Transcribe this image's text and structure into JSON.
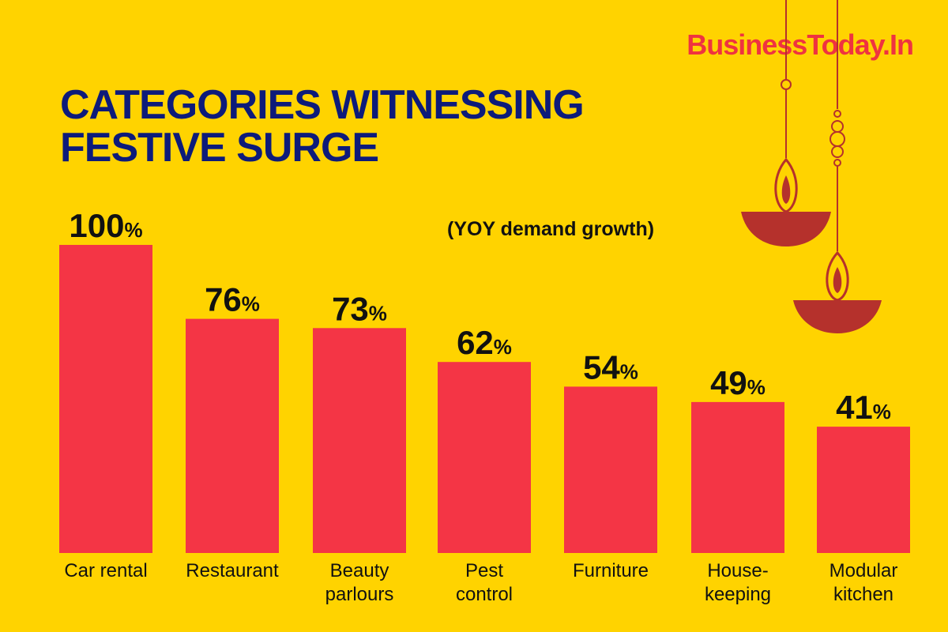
{
  "brand": {
    "logo_text": "BusinessToday.In"
  },
  "title_lines": [
    "CATEGORIES WITNESSING",
    "FESTIVE SURGE"
  ],
  "colors": {
    "background": "#FFD300",
    "bar": "#F43545",
    "title": "#0D1B7A",
    "logo": "#EF3340",
    "lamp": "#B5312C",
    "text": "#111111"
  },
  "decor": {
    "icons": [
      "diya-lamp-icon",
      "diya-lamp-icon"
    ]
  },
  "chart_data": {
    "type": "bar",
    "title": "CATEGORIES WITNESSING FESTIVE SURGE",
    "subtitle": "(YOY demand growth)",
    "categories": [
      [
        "Car rental"
      ],
      [
        "Restaurant"
      ],
      [
        "Beauty",
        "parlours"
      ],
      [
        "Pest",
        "control"
      ],
      [
        "Furniture"
      ],
      [
        "House-",
        "keeping"
      ],
      [
        "Modular",
        "kitchen"
      ]
    ],
    "values": [
      100,
      76,
      73,
      62,
      54,
      49,
      41
    ],
    "unit": "%",
    "ylim": [
      0,
      100
    ],
    "grid": false,
    "legend": "none"
  }
}
